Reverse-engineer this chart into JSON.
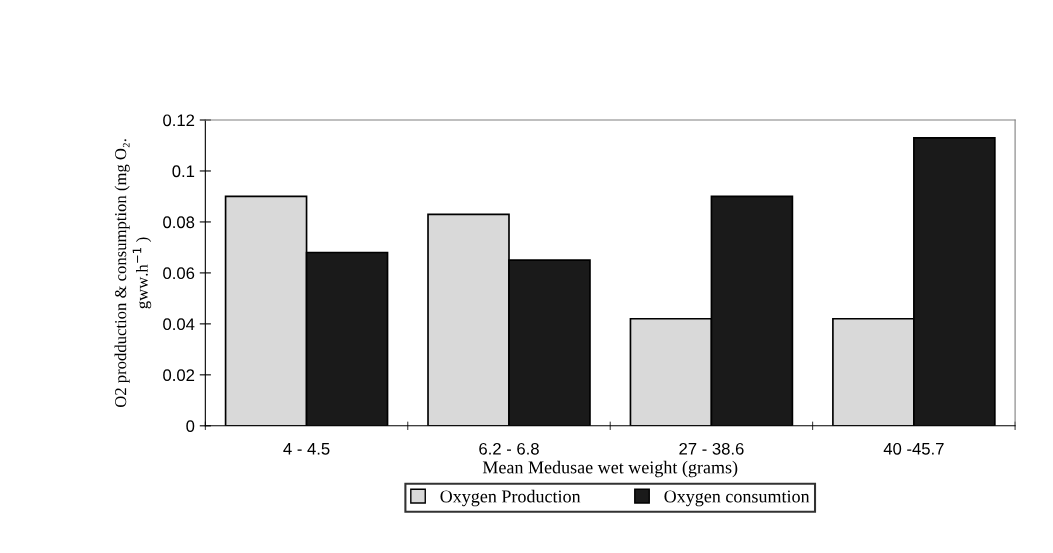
{
  "chart_data": {
    "type": "bar",
    "categories": [
      "4 - 4.5",
      "6.2 - 6.8",
      "27 - 38.6",
      "40 -45.7"
    ],
    "series": [
      {
        "name": "Oxygen Production",
        "color": "#d9d9d9",
        "values": [
          0.09,
          0.083,
          0.042,
          0.042
        ]
      },
      {
        "name": "Oxygen consumtion",
        "color": "#1a1a1a",
        "values": [
          0.068,
          0.065,
          0.09,
          0.113
        ]
      }
    ],
    "xlabel": "Mean Medusae wet weight (grams)",
    "ylabel": "O2 prodduction & consumption (mg O₂.\ngww.h$^{−1}$ )",
    "ylim": [
      0,
      0.12
    ],
    "yticks": [
      0,
      0.02,
      0.04,
      0.06,
      0.08,
      {
        "value": 0.1,
        "label": "0.1"
      },
      0.12
    ],
    "grid": false,
    "legend": "bottom"
  }
}
